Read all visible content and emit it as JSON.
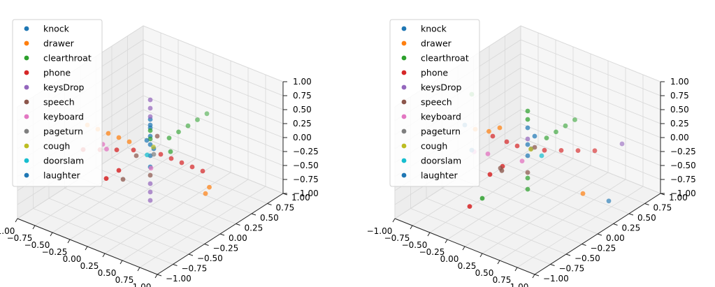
{
  "chart_data": [
    {
      "type": "scatter",
      "projection": "3d",
      "xlim": [
        -1,
        1
      ],
      "ylim": [
        -1,
        1
      ],
      "zlim": [
        -1,
        1
      ],
      "x_ticks": [
        "−1.00",
        "−0.75",
        "−0.50",
        "−0.25",
        "0.00",
        "0.25",
        "0.50",
        "0.75",
        "1.00"
      ],
      "y_ticks": [
        "−1.00",
        "−0.75",
        "−0.50",
        "−0.25",
        "0.00",
        "0.25",
        "0.50",
        "0.75",
        "1.00"
      ],
      "z_ticks": [
        "−1.00",
        "−0.75",
        "−0.50",
        "−0.25",
        "0.00",
        "0.25",
        "0.50",
        "0.75",
        "1.00"
      ],
      "grid": true,
      "legend_position": "upper-left",
      "series": [
        {
          "name": "knock",
          "color": "#1f77b4",
          "points": [
            [
              0,
              0,
              0.55
            ],
            [
              0,
              0,
              0.4
            ],
            [
              0,
              0,
              0.25
            ],
            [
              0,
              0,
              0.1
            ],
            [
              0,
              0,
              -0.1
            ],
            [
              0,
              0,
              -0.3
            ],
            [
              0.05,
              0,
              0.05
            ]
          ]
        },
        {
          "name": "drawer",
          "color": "#ff7f0e",
          "points": [
            [
              -0.9,
              0,
              0
            ],
            [
              -0.75,
              0,
              0
            ],
            [
              -0.6,
              0,
              0
            ],
            [
              -0.45,
              0,
              0
            ],
            [
              -0.3,
              0,
              0
            ],
            [
              0.7,
              0.1,
              -0.5
            ],
            [
              0.8,
              0.05,
              -0.3
            ]
          ]
        },
        {
          "name": "clearthroat",
          "color": "#2ca02c",
          "points": [
            [
              0,
              0.3,
              0
            ],
            [
              0,
              0.45,
              0
            ],
            [
              0,
              0.6,
              0
            ],
            [
              0,
              0.75,
              0
            ],
            [
              0,
              0.9,
              0
            ],
            [
              0,
              0,
              0.35
            ],
            [
              0,
              0,
              0.2
            ],
            [
              0.2,
              0.1,
              0
            ]
          ]
        },
        {
          "name": "phone",
          "color": "#d62728",
          "points": [
            [
              0.15,
              0,
              0
            ],
            [
              0.3,
              0,
              0
            ],
            [
              0.45,
              0,
              0
            ],
            [
              0.6,
              0,
              0
            ],
            [
              0.75,
              0,
              0
            ],
            [
              -0.15,
              -0.1,
              0
            ],
            [
              -0.3,
              -0.2,
              0
            ],
            [
              -0.45,
              -0.3,
              0
            ],
            [
              -0.6,
              -0.4,
              0
            ],
            [
              0,
              -0.5,
              0
            ],
            [
              0,
              -0.7,
              0
            ]
          ]
        },
        {
          "name": "keysDrop",
          "color": "#9467bd",
          "points": [
            [
              0,
              0,
              0.9
            ],
            [
              0,
              0,
              0.75
            ],
            [
              0,
              0,
              0.6
            ],
            [
              0,
              0,
              -0.6
            ],
            [
              0,
              0,
              -0.75
            ],
            [
              0,
              0,
              -0.9
            ]
          ]
        },
        {
          "name": "speech",
          "color": "#8c564b",
          "points": [
            [
              0,
              0,
              -0.45
            ],
            [
              -0.2,
              0,
              -0.2
            ],
            [
              -0.3,
              -0.1,
              -0.6
            ],
            [
              0.1,
              0,
              0.3
            ]
          ]
        },
        {
          "name": "keyboard",
          "color": "#e377c2",
          "points": [
            [
              -0.5,
              -0.2,
              0
            ],
            [
              -0.4,
              -0.25,
              0
            ],
            [
              0.1,
              -0.1,
              -0.2
            ]
          ]
        },
        {
          "name": "pageturn",
          "color": "#7f7f7f",
          "points": [
            [
              0.05,
              0,
              -0.05
            ]
          ]
        },
        {
          "name": "cough",
          "color": "#bcbd22",
          "points": [
            [
              0,
              0.05,
              0.02
            ]
          ]
        },
        {
          "name": "doorslam",
          "color": "#17becf",
          "points": [
            [
              0,
              -0.05,
              -0.05
            ]
          ]
        },
        {
          "name": "laughter",
          "color": "#1f77b4",
          "points": [
            [
              -0.05,
              0,
              0.15
            ],
            [
              0,
              0,
              0.45
            ]
          ]
        }
      ]
    },
    {
      "type": "scatter",
      "projection": "3d",
      "xlim": [
        -1,
        1
      ],
      "ylim": [
        -1,
        1
      ],
      "zlim": [
        -1,
        1
      ],
      "x_ticks": [
        "−1.00",
        "−0.75",
        "−0.50",
        "−0.25",
        "0.00",
        "0.25",
        "0.50",
        "0.75",
        "1.00"
      ],
      "y_ticks": [
        "−1.00",
        "−0.75",
        "−0.50",
        "−0.25",
        "0.00",
        "0.25",
        "0.50",
        "0.75",
        "1.00"
      ],
      "z_ticks": [
        "−1.00",
        "−0.75",
        "−0.50",
        "−0.25",
        "0.00",
        "0.25",
        "0.50",
        "0.75",
        "1.00"
      ],
      "grid": true,
      "legend_position": "upper-left",
      "series": [
        {
          "name": "knock",
          "color": "#1f77b4",
          "points": [
            [
              -0.9,
              0,
              0
            ],
            [
              0,
              0,
              0.4
            ],
            [
              0,
              0,
              0.1
            ],
            [
              0,
              0,
              -0.1
            ],
            [
              0.1,
              0,
              0.3
            ]
          ]
        },
        {
          "name": "drawer",
          "color": "#ff7f0e",
          "points": [
            [
              -0.6,
              0.05,
              0
            ],
            [
              -0.75,
              0,
              0
            ],
            [
              0.7,
              0.1,
              -0.5
            ],
            [
              -0.4,
              0,
              0.2
            ]
          ]
        },
        {
          "name": "clearthroat",
          "color": "#2ca02c",
          "points": [
            [
              0,
              0,
              0.7
            ],
            [
              0,
              0,
              0.55
            ],
            [
              0,
              0,
              -0.5
            ],
            [
              0,
              0,
              -0.7
            ],
            [
              0,
              0.3,
              0
            ],
            [
              0,
              0.45,
              0
            ],
            [
              0,
              0.6,
              0
            ],
            [
              0,
              0.75,
              0
            ],
            [
              -0.8,
              0,
              0.6
            ],
            [
              -0.2,
              -0.5,
              -0.6
            ]
          ]
        },
        {
          "name": "phone",
          "color": "#d62728",
          "points": [
            [
              0.15,
              0.1,
              0
            ],
            [
              0.3,
              0.2,
              0
            ],
            [
              0.45,
              0.3,
              0
            ],
            [
              0.6,
              0.4,
              0
            ],
            [
              -0.15,
              0,
              0
            ],
            [
              -0.3,
              0,
              0
            ],
            [
              -0.5,
              0,
              0
            ],
            [
              0,
              -0.4,
              0
            ],
            [
              0,
              -0.6,
              0
            ],
            [
              -0.2,
              -0.7,
              -0.6
            ]
          ]
        },
        {
          "name": "keysDrop",
          "color": "#9467bd",
          "points": [
            [
              0.9,
              0.5,
              0.2
            ],
            [
              0,
              0,
              0.2
            ]
          ]
        },
        {
          "name": "speech",
          "color": "#8c564b",
          "points": [
            [
              0,
              0,
              -0.4
            ],
            [
              -0.3,
              -0.1,
              -0.4
            ],
            [
              0.1,
              0,
              0.1
            ],
            [
              -0.1,
              -0.3,
              -0.2
            ]
          ]
        },
        {
          "name": "keyboard",
          "color": "#e377c2",
          "points": [
            [
              -0.3,
              -0.3,
              0
            ],
            [
              -0.45,
              -0.35,
              0
            ],
            [
              0.1,
              -0.2,
              0
            ]
          ]
        },
        {
          "name": "pageturn",
          "color": "#7f7f7f",
          "points": [
            [
              0.05,
              0,
              0.05
            ]
          ]
        },
        {
          "name": "cough",
          "color": "#bcbd22",
          "points": [
            [
              0,
              0.05,
              -0.02
            ]
          ]
        },
        {
          "name": "doorslam",
          "color": "#17becf",
          "points": [
            [
              0.2,
              0,
              0
            ]
          ]
        },
        {
          "name": "laughter",
          "color": "#1f77b4",
          "points": [
            [
              0.8,
              0.4,
              -0.8
            ],
            [
              -0.8,
              0,
              -0.4
            ]
          ]
        }
      ]
    }
  ]
}
